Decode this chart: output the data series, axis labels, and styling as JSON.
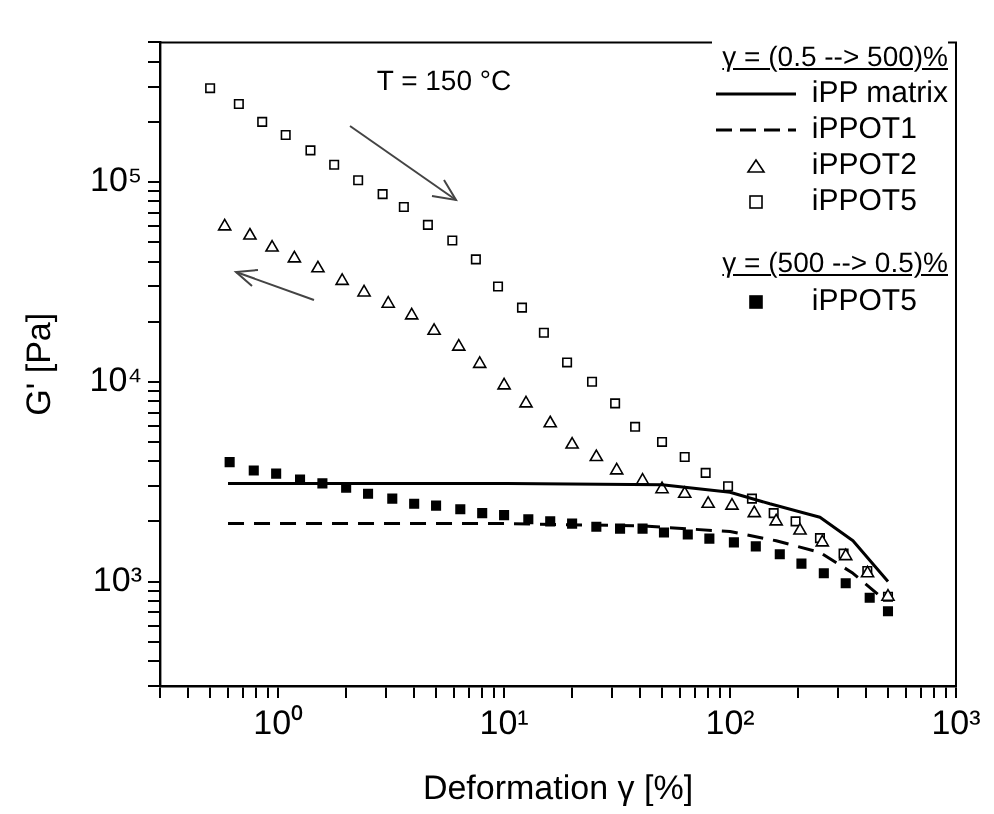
{
  "chart_data": {
    "type": "scatter",
    "xlabel": "Deformation γ [%]",
    "ylabel": "G' [Pa]",
    "legend_title": "γ = (0.5 --> 500)%",
    "annotations": [
      "T = 150 °C",
      "γ = (500 --> 0.5)%"
    ],
    "log": "xy",
    "grid": false,
    "legend": "top right",
    "xlim": [
      0.3,
      1000
    ],
    "xticks": [
      {
        "value": 0.3,
        "label": null
      },
      {
        "value": 0.4,
        "label": null
      },
      {
        "value": 0.5,
        "label": null
      },
      {
        "value": 0.6,
        "label": null
      },
      {
        "value": 0.7,
        "label": null
      },
      {
        "value": 0.8,
        "label": null
      },
      {
        "value": 0.9,
        "label": null
      },
      {
        "value": 1,
        "label": "10⁰"
      },
      {
        "value": 2,
        "label": null
      },
      {
        "value": 3,
        "label": null
      },
      {
        "value": 4,
        "label": null
      },
      {
        "value": 5,
        "label": null
      },
      {
        "value": 6,
        "label": null
      },
      {
        "value": 7,
        "label": null
      },
      {
        "value": 8,
        "label": null
      },
      {
        "value": 9,
        "label": null
      },
      {
        "value": 10,
        "label": "10¹"
      },
      {
        "value": 20,
        "label": null
      },
      {
        "value": 30,
        "label": null
      },
      {
        "value": 40,
        "label": null
      },
      {
        "value": 50,
        "label": null
      },
      {
        "value": 60,
        "label": null
      },
      {
        "value": 70,
        "label": null
      },
      {
        "value": 80,
        "label": null
      },
      {
        "value": 90,
        "label": null
      },
      {
        "value": 100,
        "label": "10²"
      },
      {
        "value": 200,
        "label": null
      },
      {
        "value": 300,
        "label": null
      },
      {
        "value": 400,
        "label": null
      },
      {
        "value": 500,
        "label": null
      },
      {
        "value": 600,
        "label": null
      },
      {
        "value": 700,
        "label": null
      },
      {
        "value": 800,
        "label": null
      },
      {
        "value": 900,
        "label": null
      },
      {
        "value": 1000,
        "label": "10³"
      }
    ],
    "ylim": [
      300,
      500000
    ],
    "yticks": [
      {
        "value": 300,
        "label": null
      },
      {
        "value": 400,
        "label": null
      },
      {
        "value": 500,
        "label": null
      },
      {
        "value": 600,
        "label": null
      },
      {
        "value": 700,
        "label": null
      },
      {
        "value": 800,
        "label": null
      },
      {
        "value": 900,
        "label": null
      },
      {
        "value": 1000,
        "label": "10³"
      },
      {
        "value": 2000,
        "label": null
      },
      {
        "value": 3000,
        "label": null
      },
      {
        "value": 4000,
        "label": null
      },
      {
        "value": 5000,
        "label": null
      },
      {
        "value": 6000,
        "label": null
      },
      {
        "value": 7000,
        "label": null
      },
      {
        "value": 8000,
        "label": null
      },
      {
        "value": 9000,
        "label": null
      },
      {
        "value": 10000,
        "label": "10⁴"
      },
      {
        "value": 20000,
        "label": null
      },
      {
        "value": 30000,
        "label": null
      },
      {
        "value": 40000,
        "label": null
      },
      {
        "value": 50000,
        "label": null
      },
      {
        "value": 60000,
        "label": null
      },
      {
        "value": 70000,
        "label": null
      },
      {
        "value": 80000,
        "label": null
      },
      {
        "value": 90000,
        "label": null
      },
      {
        "value": 100000,
        "label": "10⁵"
      },
      {
        "value": 200000,
        "label": null
      },
      {
        "value": 300000,
        "label": null
      },
      {
        "value": 400000,
        "label": null
      },
      {
        "value": 500000,
        "label": null
      }
    ],
    "series": [
      {
        "name": "iPP matrix",
        "type": "line",
        "line_style": "solid",
        "marker": "none",
        "color": "#000000",
        "x": [
          0.6,
          10,
          50,
          100,
          150,
          250,
          350,
          500
        ],
        "values": [
          3100,
          3100,
          3050,
          2800,
          2450,
          2100,
          1600,
          1000
        ]
      },
      {
        "name": "iPPOT1",
        "type": "line",
        "line_style": "dashed",
        "marker": "none",
        "color": "#000000",
        "x": [
          0.6,
          10,
          40,
          100,
          160,
          250,
          350,
          470
        ],
        "values": [
          1950,
          1950,
          1900,
          1780,
          1600,
          1400,
          1100,
          830
        ]
      },
      {
        "name": "iPPOT2",
        "type": "scatter",
        "marker": "triangle",
        "color": "#000000",
        "x": [
          0.58,
          0.75,
          0.94,
          1.18,
          1.5,
          1.92,
          2.4,
          3.07,
          3.9,
          4.9,
          6.3,
          7.8,
          10,
          12.5,
          16,
          20,
          25.6,
          31.5,
          41,
          50,
          63,
          80,
          102,
          128,
          160,
          204,
          256,
          325,
          406,
          500
        ],
        "values": [
          60000,
          54000,
          47000,
          41500,
          37000,
          32000,
          28000,
          24600,
          21500,
          18000,
          15000,
          12300,
          9600,
          7800,
          6200,
          4850,
          4200,
          3600,
          3200,
          2900,
          2750,
          2450,
          2400,
          2200,
          2000,
          1800,
          1570,
          1340,
          1100,
          840
        ]
      },
      {
        "name": "iPPOT5",
        "type": "scatter",
        "marker": "square",
        "color": "#000000",
        "x": [
          0.5,
          0.67,
          0.85,
          1.08,
          1.39,
          1.77,
          2.26,
          2.9,
          3.6,
          4.6,
          5.9,
          7.5,
          9.4,
          12,
          15,
          19,
          24.5,
          31,
          38,
          50,
          63,
          78,
          98,
          125,
          156,
          195,
          250,
          318,
          405,
          500
        ],
        "values": [
          295000,
          246000,
          200000,
          172000,
          144000,
          122000,
          102000,
          87000,
          75000,
          61000,
          51000,
          41000,
          30000,
          23500,
          17600,
          12500,
          10000,
          7800,
          5950,
          5000,
          4200,
          3500,
          3000,
          2600,
          2200,
          2000,
          1650,
          1380,
          1130,
          840
        ]
      },
      {
        "name": "iPPOT5",
        "type": "scatter",
        "marker": "square",
        "color": "#000000",
        "x": [
          0.61,
          0.78,
          0.98,
          1.25,
          1.57,
          2,
          2.5,
          3.2,
          4,
          5,
          6.4,
          8,
          10,
          12.8,
          16,
          20,
          25.6,
          32.6,
          41,
          51,
          65,
          81,
          104,
          130,
          166,
          207,
          260,
          325,
          415,
          500
        ],
        "values": [
          3960,
          3600,
          3470,
          3240,
          3100,
          2950,
          2750,
          2600,
          2450,
          2400,
          2300,
          2200,
          2150,
          2050,
          2000,
          1950,
          1880,
          1840,
          1840,
          1760,
          1720,
          1640,
          1570,
          1500,
          1370,
          1230,
          1100,
          980,
          830,
          710
        ]
      }
    ]
  }
}
